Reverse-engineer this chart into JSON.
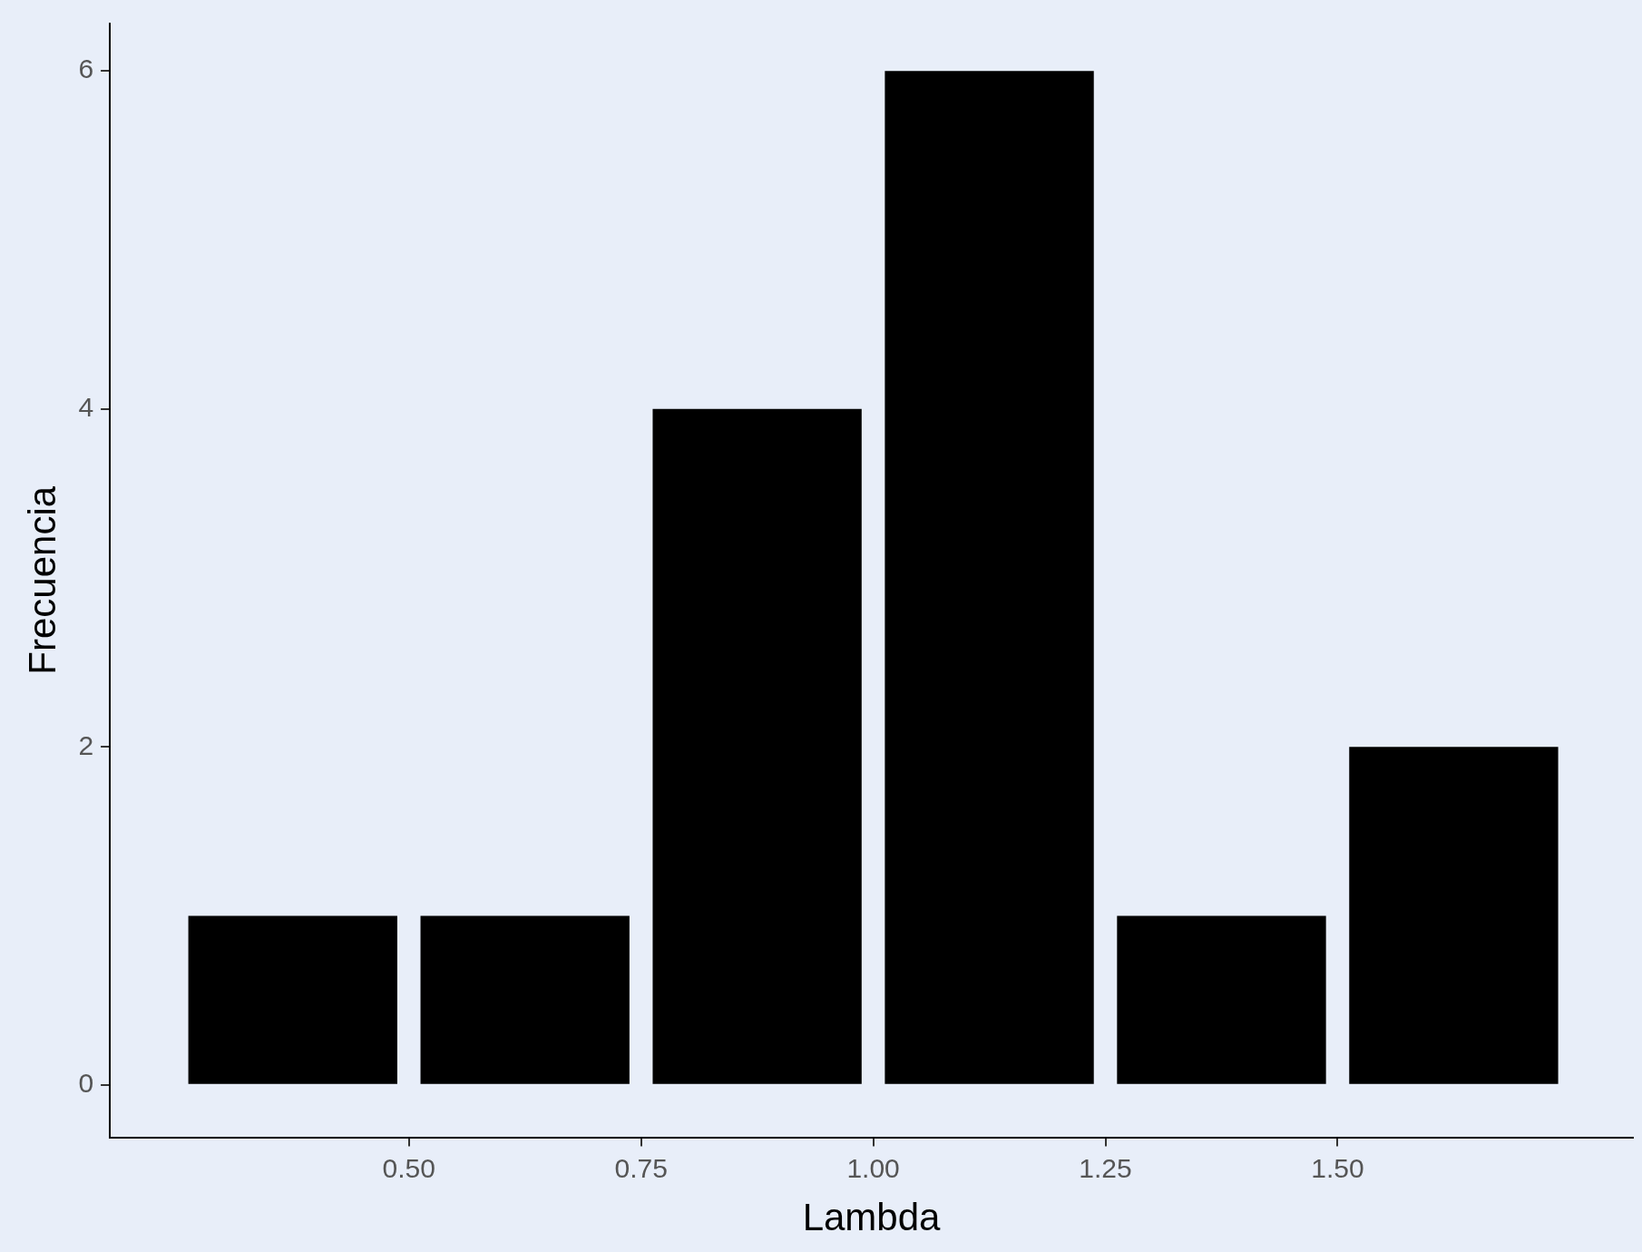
{
  "chart_data": {
    "type": "histogram",
    "xlabel": "Lambda",
    "ylabel": "Frecuencia",
    "bins": [
      0.25,
      0.5,
      0.75,
      1.0,
      1.25,
      1.5,
      1.75
    ],
    "values": [
      1,
      1,
      4,
      6,
      1,
      2
    ],
    "color": "#000000",
    "xlim": [
      0.178,
      1.818
    ],
    "xticks": [
      {
        "value": 0.5,
        "label": "0.50"
      },
      {
        "value": 0.75,
        "label": "0.75"
      },
      {
        "value": 1.0,
        "label": "1.00"
      },
      {
        "value": 1.25,
        "label": "1.25"
      },
      {
        "value": 1.5,
        "label": "1.50"
      }
    ],
    "ylim": [
      -0.31,
      6.28
    ],
    "yticks": [
      0,
      2,
      4,
      6
    ],
    "grid": false,
    "legend": false
  }
}
